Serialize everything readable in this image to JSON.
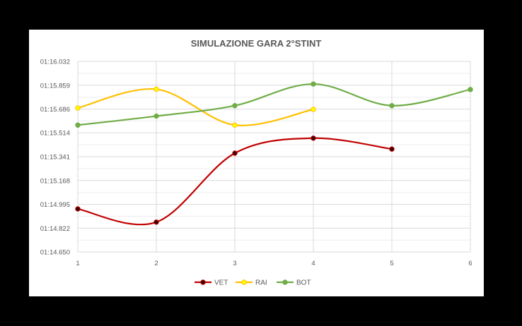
{
  "chart_data": {
    "type": "line",
    "title": "SIMULAZIONE GARA 2°STINT",
    "xlabel": "",
    "ylabel": "",
    "x": [
      1,
      2,
      3,
      4,
      5,
      6
    ],
    "x_tick_labels": [
      "1",
      "2",
      "3",
      "4",
      "5",
      "6"
    ],
    "ylim": [
      74.65,
      76.032
    ],
    "y_ticks": [
      74.65,
      74.822,
      74.995,
      75.168,
      75.341,
      75.514,
      75.686,
      75.859,
      76.032
    ],
    "y_tick_labels": [
      "01:14.650",
      "01:14.822",
      "01:14.995",
      "01:15.168",
      "01:15.341",
      "01:15.514",
      "01:15.686",
      "01:15.859",
      "01:16.032"
    ],
    "grid": true,
    "smooth": true,
    "legend_position": "bottom",
    "series": [
      {
        "name": "VET",
        "color": "#c00000",
        "marker_fill": "#3d0000",
        "x": [
          1,
          2,
          3,
          4,
          5
        ],
        "values": [
          74.962,
          74.866,
          75.366,
          75.475,
          75.396
        ]
      },
      {
        "name": "RAI",
        "color": "#ffc000",
        "marker_fill": "#ffff00",
        "x": [
          1,
          2,
          3,
          4
        ],
        "values": [
          75.694,
          75.83,
          75.57,
          75.684
        ]
      },
      {
        "name": "BOT",
        "color": "#70ad47",
        "marker_fill": "#70ad47",
        "x": [
          1,
          2,
          3,
          4,
          5,
          6
        ],
        "values": [
          75.57,
          75.635,
          75.711,
          75.868,
          75.711,
          75.828
        ]
      }
    ]
  }
}
